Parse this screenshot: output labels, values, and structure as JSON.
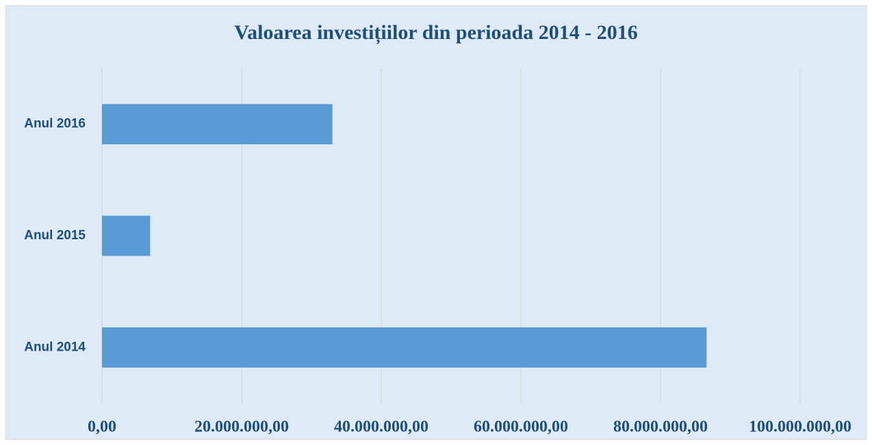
{
  "chart_data": {
    "type": "bar",
    "orientation": "horizontal",
    "title": "Valoarea investițiilor din perioada 2014 - 2016",
    "categories": [
      "Anul 2014",
      "Anul 2015",
      "Anul 2016"
    ],
    "values": [
      86600000,
      6900000,
      33000000
    ],
    "color": "#5b9bd5",
    "xlim": [
      0,
      100000000
    ],
    "xticks": [
      {
        "value": 0,
        "label": "0,00"
      },
      {
        "value": 20000000,
        "label": "20.000.000,00"
      },
      {
        "value": 40000000,
        "label": "40.000.000,00"
      },
      {
        "value": 60000000,
        "label": "60.000.000,00"
      },
      {
        "value": 80000000,
        "label": "80.000.000,00"
      },
      {
        "value": 100000000,
        "label": "100.000.000,00"
      }
    ],
    "grid": true
  }
}
